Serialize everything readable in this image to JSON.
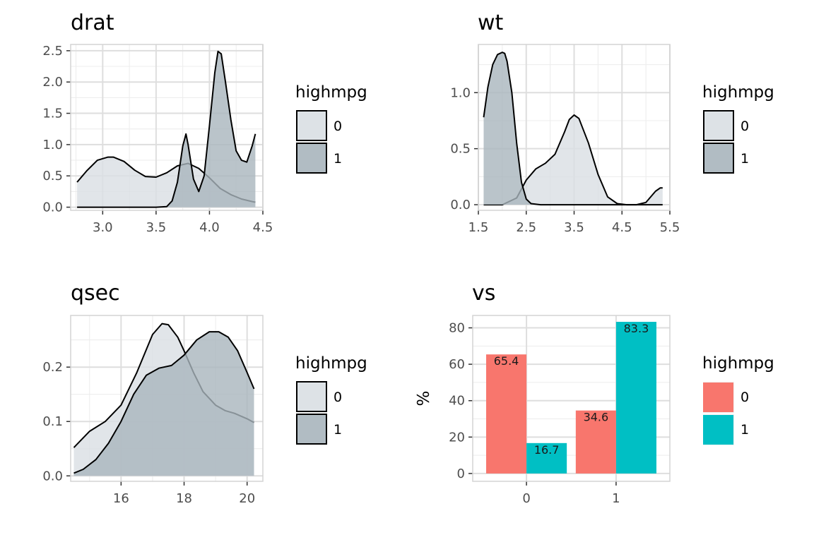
{
  "chart_data": [
    {
      "type": "area",
      "title": "drat",
      "xlabel": "",
      "ylabel": "",
      "xlim": [
        2.7,
        4.5
      ],
      "ylim": [
        -0.05,
        2.6
      ],
      "xticks": [
        "3.0",
        "3.5",
        "4.0",
        "4.5"
      ],
      "yticks": [
        "0.0",
        "0.5",
        "1.0",
        "1.5",
        "2.0",
        "2.5"
      ],
      "grid": true,
      "legend": {
        "title": "highmpg",
        "entries": [
          "0",
          "1"
        ],
        "position": "right"
      },
      "series": [
        {
          "name": "0",
          "fill": "#d9dfe3",
          "x": [
            2.76,
            2.85,
            2.95,
            3.05,
            3.1,
            3.2,
            3.3,
            3.4,
            3.5,
            3.6,
            3.7,
            3.8,
            3.9,
            4.0,
            4.1,
            4.2,
            4.3,
            4.4,
            4.43
          ],
          "y": [
            0.4,
            0.58,
            0.75,
            0.8,
            0.8,
            0.73,
            0.59,
            0.49,
            0.48,
            0.55,
            0.66,
            0.7,
            0.62,
            0.47,
            0.3,
            0.2,
            0.13,
            0.09,
            0.08
          ]
        },
        {
          "name": "1",
          "fill": "#a9b5bd",
          "x": [
            2.76,
            3.5,
            3.6,
            3.65,
            3.7,
            3.75,
            3.78,
            3.8,
            3.85,
            3.9,
            3.95,
            4.0,
            4.05,
            4.08,
            4.11,
            4.15,
            4.2,
            4.25,
            4.3,
            4.35,
            4.4,
            4.43
          ],
          "y": [
            0.0,
            0.0,
            0.01,
            0.1,
            0.4,
            0.98,
            1.17,
            1.0,
            0.45,
            0.25,
            0.5,
            1.3,
            2.15,
            2.49,
            2.45,
            2.0,
            1.4,
            0.9,
            0.75,
            0.72,
            0.98,
            1.17
          ]
        }
      ]
    },
    {
      "type": "area",
      "title": "wt",
      "xlabel": "",
      "ylabel": "",
      "xlim": [
        1.5,
        5.5
      ],
      "ylim": [
        -0.05,
        1.43
      ],
      "xticks": [
        "1.5",
        "2.5",
        "3.5",
        "4.5",
        "5.5"
      ],
      "yticks": [
        "0.0",
        "0.5",
        "1.0"
      ],
      "grid": true,
      "legend": {
        "title": "highmpg",
        "entries": [
          "0",
          "1"
        ],
        "position": "right"
      },
      "series": [
        {
          "name": "0",
          "fill": "#d9dfe3",
          "x": [
            1.61,
            2.0,
            2.3,
            2.5,
            2.7,
            2.9,
            3.1,
            3.3,
            3.4,
            3.5,
            3.6,
            3.8,
            4.0,
            4.2,
            4.4,
            4.6,
            4.8,
            5.0,
            5.2,
            5.3,
            5.35
          ],
          "y": [
            0.0,
            0.0,
            0.06,
            0.22,
            0.32,
            0.37,
            0.45,
            0.65,
            0.76,
            0.8,
            0.77,
            0.55,
            0.27,
            0.07,
            0.01,
            0.0,
            0.0,
            0.02,
            0.12,
            0.15,
            0.15
          ]
        },
        {
          "name": "1",
          "fill": "#a9b5bd",
          "x": [
            1.61,
            1.7,
            1.8,
            1.9,
            2.0,
            2.05,
            2.1,
            2.2,
            2.3,
            2.4,
            2.5,
            2.6,
            2.8,
            3.0,
            5.35
          ],
          "y": [
            0.78,
            1.05,
            1.25,
            1.34,
            1.36,
            1.35,
            1.28,
            1.0,
            0.55,
            0.2,
            0.05,
            0.01,
            0.0,
            0.0,
            0.0
          ]
        }
      ]
    },
    {
      "type": "area",
      "title": "qsec",
      "xlabel": "",
      "ylabel": "",
      "xlim": [
        14.4,
        20.5
      ],
      "ylim": [
        -0.01,
        0.295
      ],
      "xticks": [
        "16",
        "18",
        "20"
      ],
      "yticks": [
        "0.0",
        "0.1",
        "0.2"
      ],
      "grid": true,
      "legend": {
        "title": "highmpg",
        "entries": [
          "0",
          "1"
        ],
        "position": "right"
      },
      "series": [
        {
          "name": "0",
          "fill": "#d9dfe3",
          "x": [
            14.5,
            15.0,
            15.5,
            16.0,
            16.5,
            17.0,
            17.3,
            17.5,
            17.8,
            18.0,
            18.3,
            18.6,
            19.0,
            19.3,
            19.6,
            20.0,
            20.22
          ],
          "y": [
            0.052,
            0.082,
            0.1,
            0.13,
            0.19,
            0.26,
            0.28,
            0.278,
            0.255,
            0.23,
            0.19,
            0.155,
            0.13,
            0.12,
            0.115,
            0.105,
            0.098
          ]
        },
        {
          "name": "1",
          "fill": "#a9b5bd",
          "x": [
            14.5,
            14.8,
            15.2,
            15.6,
            16.0,
            16.4,
            16.8,
            17.2,
            17.6,
            18.0,
            18.4,
            18.8,
            19.1,
            19.4,
            19.7,
            20.0,
            20.22
          ],
          "y": [
            0.005,
            0.012,
            0.03,
            0.06,
            0.1,
            0.15,
            0.185,
            0.198,
            0.203,
            0.222,
            0.25,
            0.265,
            0.265,
            0.255,
            0.23,
            0.19,
            0.16
          ]
        }
      ]
    },
    {
      "type": "bar",
      "title": "vs",
      "xlabel": "",
      "ylabel": "%",
      "categories": [
        "0",
        "1"
      ],
      "ylim": [
        -4.3,
        86.8
      ],
      "yticks": [
        "0",
        "20",
        "40",
        "60",
        "80"
      ],
      "grid": true,
      "legend": {
        "title": "highmpg",
        "entries": [
          "0",
          "1"
        ],
        "position": "right"
      },
      "series": [
        {
          "name": "0",
          "color": "#F8766D",
          "values": [
            65.4,
            34.6
          ],
          "labels": [
            "65.4",
            "34.6"
          ]
        },
        {
          "name": "1",
          "color": "#00BFC4",
          "values": [
            16.7,
            83.3
          ],
          "labels": [
            "16.7",
            "83.3"
          ]
        }
      ]
    }
  ]
}
